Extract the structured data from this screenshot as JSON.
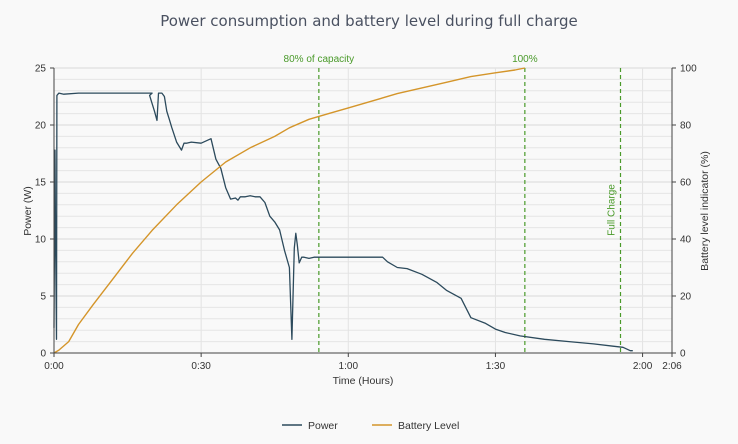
{
  "chart_data": {
    "type": "line",
    "title": "Power consumption and battery level during full charge",
    "xlabel": "Time (Hours)",
    "ylabel": "Power (W)",
    "y2label": "Battery level indicator (%)",
    "xlim": [
      0,
      126
    ],
    "ylim": [
      0,
      25
    ],
    "y2lim": [
      0,
      100
    ],
    "x_ticks": [
      {
        "value": 0,
        "label": "0:00"
      },
      {
        "value": 30,
        "label": "0:30"
      },
      {
        "value": 60,
        "label": "1:00"
      },
      {
        "value": 90,
        "label": "1:30"
      },
      {
        "value": 120,
        "label": "2:00"
      },
      {
        "value": 126,
        "label": "2:06"
      }
    ],
    "y_ticks": [
      0,
      5,
      10,
      15,
      20,
      25
    ],
    "y2_ticks": [
      0,
      20,
      40,
      60,
      80,
      100
    ],
    "grid": true,
    "legend_position": "bottom",
    "annotations": [
      {
        "x": 54,
        "label": "80% of capacity",
        "orientation": "horizontal"
      },
      {
        "x": 96,
        "label": "100%",
        "orientation": "horizontal"
      },
      {
        "x": 115.5,
        "label": "Full Charge",
        "orientation": "vertical"
      }
    ],
    "annotation_color": "#4a9a2a",
    "series": [
      {
        "name": "Power",
        "axis": "left",
        "color": "#2c4a5c",
        "x": [
          0,
          0.2,
          0.3,
          0.5,
          0.6,
          1,
          2,
          5,
          10,
          15,
          20,
          19.5,
          20.5,
          21,
          21.3,
          21.6,
          22,
          22.5,
          23,
          23.5,
          24,
          25,
          26,
          26.5,
          27,
          28,
          30,
          32,
          33,
          34,
          35,
          36,
          37,
          37.5,
          38,
          39,
          40,
          41,
          42,
          43,
          44,
          45,
          46,
          47,
          48,
          48.5,
          49,
          49.3,
          49.6,
          50,
          50.5,
          51,
          52,
          53,
          55,
          60,
          65,
          67,
          68,
          70,
          72,
          75,
          78,
          80,
          83,
          85,
          88,
          90,
          92,
          95,
          100,
          105,
          110,
          114,
          116,
          117.5,
          118
        ],
        "y": [
          2.2,
          17.8,
          10.5,
          1.2,
          22.6,
          22.8,
          22.7,
          22.8,
          22.8,
          22.8,
          22.8,
          22.6,
          21.2,
          20.4,
          22.8,
          22.8,
          22.8,
          22.5,
          21.2,
          20.5,
          19.8,
          18.5,
          17.8,
          18.4,
          18.4,
          18.5,
          18.4,
          18.8,
          17.0,
          16.2,
          14.5,
          13.5,
          13.6,
          13.4,
          13.7,
          13.7,
          13.8,
          13.7,
          13.7,
          13.2,
          12.0,
          11.5,
          10.8,
          9.0,
          7.5,
          1.2,
          9.2,
          10.5,
          9.5,
          7.9,
          8.4,
          8.4,
          8.3,
          8.4,
          8.4,
          8.4,
          8.4,
          8.4,
          8.0,
          7.5,
          7.4,
          6.9,
          6.2,
          5.5,
          4.8,
          3.1,
          2.6,
          2.1,
          1.8,
          1.5,
          1.2,
          1.0,
          0.8,
          0.6,
          0.5,
          0.2,
          0.2
        ]
      },
      {
        "name": "Battery Level",
        "axis": "right",
        "color": "#d4952a",
        "x": [
          0,
          1,
          3,
          5,
          8,
          12,
          16,
          20,
          25,
          30,
          35,
          40,
          45,
          48,
          52,
          56,
          60,
          65,
          70,
          75,
          80,
          85,
          90,
          94,
          96
        ],
        "y": [
          0,
          1,
          4,
          10,
          17,
          26,
          35,
          43,
          52,
          60,
          67,
          72,
          76,
          79,
          82,
          84,
          86,
          88.5,
          91,
          93,
          95,
          97,
          98.3,
          99.3,
          100
        ]
      }
    ]
  }
}
